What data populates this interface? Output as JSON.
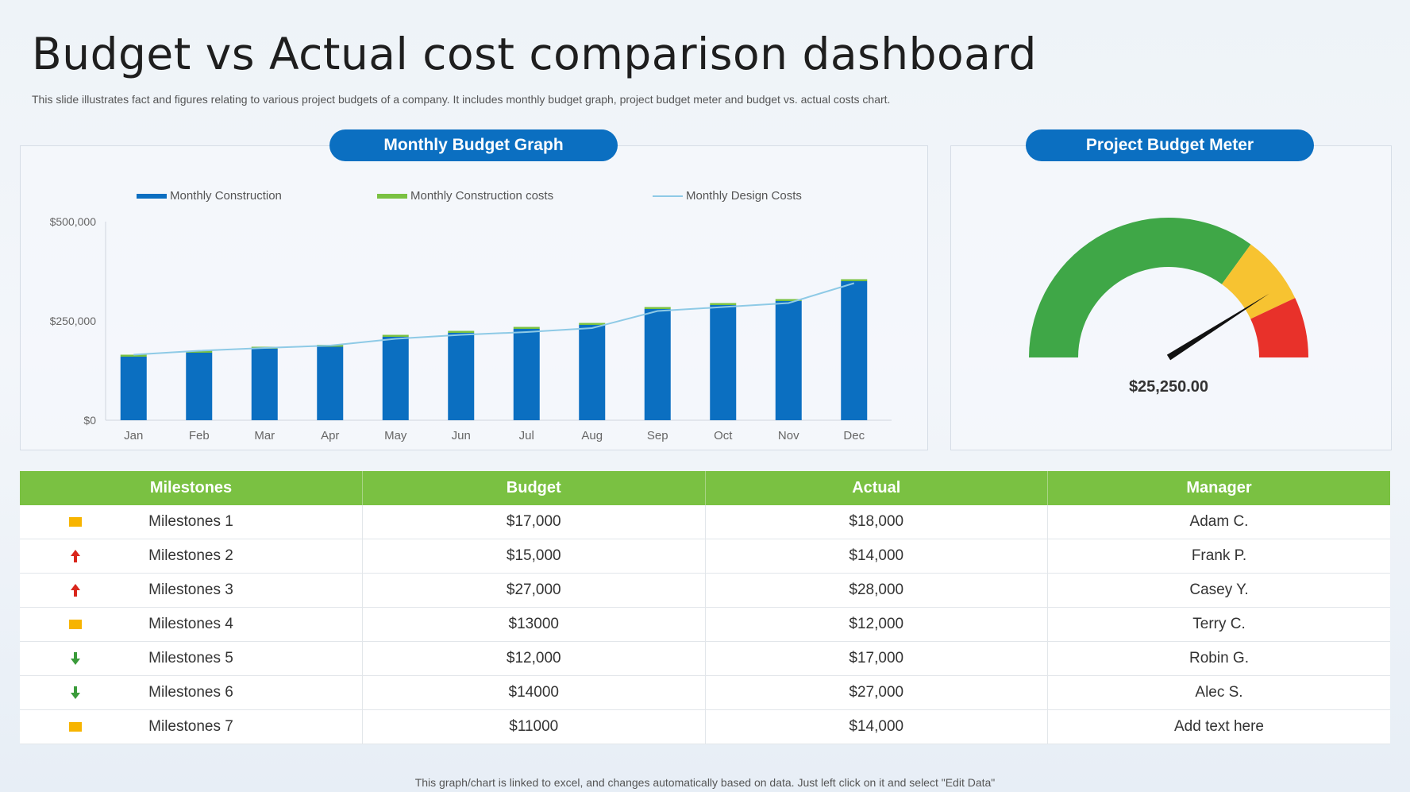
{
  "page": {
    "title": "Budget vs Actual cost comparison dashboard",
    "subtitle": "This slide illustrates fact and figures relating to various project budgets of a company. It includes monthly budget graph, project budget meter and budget vs. actual costs chart.",
    "footer": "This graph/chart is linked to excel, and changes automatically based on data. Just left click on it and select \"Edit Data\""
  },
  "monthly_panel": {
    "heading": "Monthly Budget Graph"
  },
  "meter_panel": {
    "heading": "Project Budget Meter",
    "value_label": "$25,250.00"
  },
  "colors": {
    "bar_blue": "#0b6fc1",
    "bar_green": "#7ac142",
    "line_lightblue": "#8ecae6",
    "gauge_green": "#3fa747",
    "gauge_yellow": "#f7c331",
    "gauge_red": "#e8312a",
    "table_header": "#7ac142"
  },
  "chart_data": [
    {
      "type": "bar",
      "title": "",
      "categories": [
        "Jan",
        "Feb",
        "Mar",
        "Apr",
        "May",
        "Jun",
        "Jul",
        "Aug",
        "Sep",
        "Oct",
        "Nov",
        "Dec"
      ],
      "series": [
        {
          "name": "Monthly Construction",
          "kind": "bar",
          "color": "#0b6fc1",
          "values": [
            160000,
            170000,
            180000,
            185000,
            210000,
            220000,
            230000,
            240000,
            280000,
            290000,
            300000,
            350000
          ]
        },
        {
          "name": "Monthly Construction costs",
          "kind": "bar-stack",
          "color": "#7ac142",
          "values": [
            5000,
            5000,
            5000,
            5000,
            5000,
            5000,
            5000,
            5000,
            5000,
            5000,
            5000,
            5000
          ]
        },
        {
          "name": "Monthly Design Costs",
          "kind": "line",
          "color": "#8ecae6",
          "values": [
            165000,
            175000,
            182000,
            188000,
            205000,
            215000,
            222000,
            232000,
            275000,
            285000,
            295000,
            345000
          ]
        }
      ],
      "y_ticks": [
        "$0",
        "$250,000",
        "$500,000"
      ],
      "ylim": [
        0,
        500000
      ],
      "legend_position": "top",
      "grid": false
    },
    {
      "type": "gauge",
      "title": "",
      "bands": [
        {
          "color": "#3fa747",
          "from": 0,
          "to": 0.7
        },
        {
          "color": "#f7c331",
          "from": 0.7,
          "to": 0.86
        },
        {
          "color": "#e8312a",
          "from": 0.86,
          "to": 1.0
        }
      ],
      "needle_fraction": 0.82,
      "value_label": "$25,250.00"
    }
  ],
  "table": {
    "headers": [
      "Milestones",
      "Budget",
      "Actual",
      "Manager"
    ],
    "rows": [
      {
        "status": "neutral-icon",
        "milestone": "Milestones 1",
        "budget": "$17,000",
        "actual": "$18,000",
        "manager": "Adam C."
      },
      {
        "status": "up-arrow-icon",
        "milestone": "Milestones 2",
        "budget": "$15,000",
        "actual": "$14,000",
        "manager": "Frank P."
      },
      {
        "status": "up-arrow-icon",
        "milestone": "Milestones 3",
        "budget": "$27,000",
        "actual": "$28,000",
        "manager": "Casey Y."
      },
      {
        "status": "neutral-icon",
        "milestone": "Milestones 4",
        "budget": "$13000",
        "actual": "$12,000",
        "manager": "Terry C."
      },
      {
        "status": "down-arrow-icon",
        "milestone": "Milestones 5",
        "budget": "$12,000",
        "actual": "$17,000",
        "manager": "Robin G."
      },
      {
        "status": "down-arrow-icon",
        "milestone": "Milestones 6",
        "budget": "$14000",
        "actual": "$27,000",
        "manager": "Alec S."
      },
      {
        "status": "neutral-icon",
        "milestone": "Milestones 7",
        "budget": "$11000",
        "actual": "$14,000",
        "manager": "Add text here"
      }
    ]
  }
}
